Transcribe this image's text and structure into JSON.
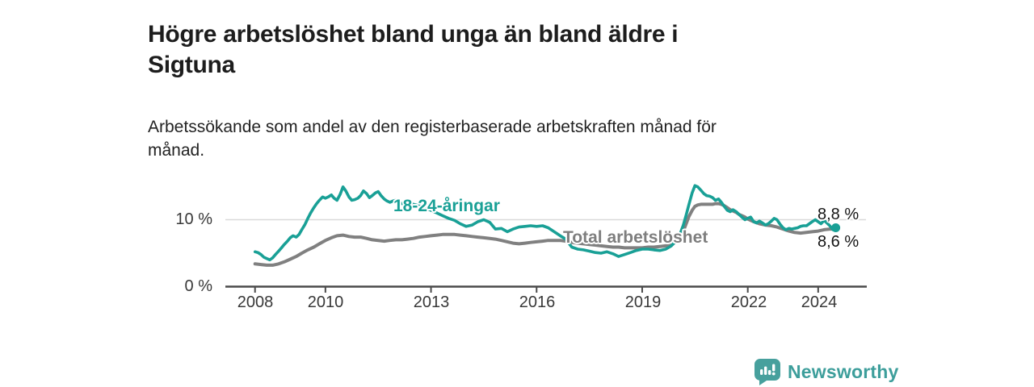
{
  "header": {
    "title_lines": [
      "Högre arbetslöshet bland unga än bland äldre i",
      "Sigtuna"
    ],
    "subtitle_lines": [
      "Arbetssökande som andel av den registerbaserade arbetskraften månad för",
      "månad."
    ]
  },
  "branding": {
    "logo_text": "Newsworthy",
    "logo_icon": "bar-chart-speech-bubble-icon",
    "text_color": "#3d9e9b",
    "icon_color": "#47a09d"
  },
  "chart_data": {
    "type": "line",
    "title": "Högre arbetslöshet bland unga än bland äldre i Sigtuna",
    "subtitle": "Arbetssökande som andel av den registerbaserade arbetskraften månad för månad.",
    "xlabel": "",
    "ylabel": "",
    "grid": "single horizontal gridline at 10 %",
    "legend_position": "inline labels on lines",
    "x_axis": {
      "tick_years": [
        2008,
        2010,
        2013,
        2016,
        2019,
        2022,
        2024
      ],
      "tick_labels": [
        "2008",
        "2010",
        "2013",
        "2016",
        "2019",
        "2022",
        "2024"
      ],
      "range": [
        2007.7,
        2025.4
      ]
    },
    "y_axis": {
      "tick_labels": {
        "zero": "0 %",
        "ten": "10 %"
      },
      "tick_values": [
        0,
        10
      ],
      "gridlines": [
        10
      ],
      "range": [
        0,
        17
      ]
    },
    "end_labels": {
      "young": "8,8 %",
      "total": "8,6 %"
    },
    "colors": {
      "young": "#19a096",
      "total": "#808080",
      "gridline": "#d9d9d9",
      "axis": "#4a4a4a",
      "value_text": "#141414"
    },
    "series": [
      {
        "name": "young",
        "label": "18-24-åringar",
        "color": "#19a096",
        "width": 3.6,
        "end_value_label": "8,8 %",
        "points": [
          [
            2008.0,
            5.2
          ],
          [
            2008.08,
            5.1
          ],
          [
            2008.17,
            4.8
          ],
          [
            2008.25,
            4.4
          ],
          [
            2008.33,
            4.2
          ],
          [
            2008.42,
            4.0
          ],
          [
            2008.5,
            4.3
          ],
          [
            2008.58,
            4.8
          ],
          [
            2008.67,
            5.3
          ],
          [
            2008.75,
            5.8
          ],
          [
            2008.83,
            6.3
          ],
          [
            2008.92,
            6.8
          ],
          [
            2009.0,
            7.3
          ],
          [
            2009.08,
            7.6
          ],
          [
            2009.17,
            7.4
          ],
          [
            2009.25,
            7.8
          ],
          [
            2009.33,
            8.5
          ],
          [
            2009.42,
            9.3
          ],
          [
            2009.5,
            10.2
          ],
          [
            2009.58,
            11.0
          ],
          [
            2009.67,
            11.8
          ],
          [
            2009.75,
            12.4
          ],
          [
            2009.83,
            12.9
          ],
          [
            2009.92,
            13.4
          ],
          [
            2010.0,
            13.2
          ],
          [
            2010.08,
            13.4
          ],
          [
            2010.17,
            13.7
          ],
          [
            2010.25,
            13.2
          ],
          [
            2010.33,
            12.9
          ],
          [
            2010.42,
            13.8
          ],
          [
            2010.5,
            14.9
          ],
          [
            2010.58,
            14.3
          ],
          [
            2010.67,
            13.4
          ],
          [
            2010.75,
            12.9
          ],
          [
            2010.83,
            13.0
          ],
          [
            2010.92,
            13.2
          ],
          [
            2011.0,
            13.6
          ],
          [
            2011.08,
            14.3
          ],
          [
            2011.17,
            13.9
          ],
          [
            2011.25,
            13.3
          ],
          [
            2011.33,
            13.6
          ],
          [
            2011.42,
            14.0
          ],
          [
            2011.5,
            14.2
          ],
          [
            2011.58,
            13.6
          ],
          [
            2011.67,
            13.1
          ],
          [
            2011.75,
            12.8
          ],
          [
            2011.83,
            12.6
          ],
          [
            2011.92,
            12.8
          ],
          [
            2012.0,
            12.9
          ],
          [
            2012.17,
            12.4
          ],
          [
            2012.33,
            12.6
          ],
          [
            2012.5,
            12.3
          ],
          [
            2012.67,
            12.1
          ],
          [
            2012.83,
            11.8
          ],
          [
            2013.0,
            11.4
          ],
          [
            2013.17,
            11.0
          ],
          [
            2013.33,
            10.6
          ],
          [
            2013.5,
            10.2
          ],
          [
            2013.67,
            9.9
          ],
          [
            2013.83,
            9.4
          ],
          [
            2014.0,
            9.0
          ],
          [
            2014.17,
            9.2
          ],
          [
            2014.33,
            9.7
          ],
          [
            2014.5,
            10.0
          ],
          [
            2014.67,
            9.6
          ],
          [
            2014.83,
            8.6
          ],
          [
            2015.0,
            8.7
          ],
          [
            2015.17,
            8.2
          ],
          [
            2015.33,
            8.6
          ],
          [
            2015.5,
            8.9
          ],
          [
            2015.67,
            9.0
          ],
          [
            2015.83,
            9.1
          ],
          [
            2016.0,
            9.0
          ],
          [
            2016.17,
            9.1
          ],
          [
            2016.33,
            8.8
          ],
          [
            2016.5,
            8.2
          ],
          [
            2016.67,
            7.6
          ],
          [
            2016.83,
            7.1
          ],
          [
            2017.0,
            5.9
          ],
          [
            2017.17,
            5.6
          ],
          [
            2017.33,
            5.5
          ],
          [
            2017.5,
            5.3
          ],
          [
            2017.67,
            5.1
          ],
          [
            2017.83,
            5.0
          ],
          [
            2018.0,
            5.2
          ],
          [
            2018.17,
            4.9
          ],
          [
            2018.33,
            4.5
          ],
          [
            2018.5,
            4.8
          ],
          [
            2018.67,
            5.1
          ],
          [
            2018.83,
            5.4
          ],
          [
            2019.0,
            5.6
          ],
          [
            2019.17,
            5.6
          ],
          [
            2019.33,
            5.5
          ],
          [
            2019.5,
            5.4
          ],
          [
            2019.67,
            5.6
          ],
          [
            2019.83,
            6.1
          ],
          [
            2020.0,
            7.0
          ],
          [
            2020.08,
            7.9
          ],
          [
            2020.17,
            9.2
          ],
          [
            2020.25,
            10.7
          ],
          [
            2020.33,
            12.3
          ],
          [
            2020.42,
            14.0
          ],
          [
            2020.5,
            15.1
          ],
          [
            2020.58,
            14.9
          ],
          [
            2020.67,
            14.4
          ],
          [
            2020.75,
            13.9
          ],
          [
            2020.83,
            13.6
          ],
          [
            2020.92,
            13.5
          ],
          [
            2021.0,
            13.3
          ],
          [
            2021.08,
            12.9
          ],
          [
            2021.17,
            13.1
          ],
          [
            2021.25,
            12.6
          ],
          [
            2021.33,
            12.0
          ],
          [
            2021.42,
            11.4
          ],
          [
            2021.5,
            11.2
          ],
          [
            2021.58,
            11.5
          ],
          [
            2021.67,
            11.2
          ],
          [
            2021.75,
            10.8
          ],
          [
            2021.83,
            10.4
          ],
          [
            2021.92,
            10.0
          ],
          [
            2022.0,
            10.2
          ],
          [
            2022.08,
            10.4
          ],
          [
            2022.17,
            9.7
          ],
          [
            2022.25,
            9.5
          ],
          [
            2022.33,
            9.8
          ],
          [
            2022.42,
            9.5
          ],
          [
            2022.5,
            9.2
          ],
          [
            2022.58,
            9.4
          ],
          [
            2022.67,
            9.8
          ],
          [
            2022.75,
            10.2
          ],
          [
            2022.83,
            10.0
          ],
          [
            2022.92,
            9.3
          ],
          [
            2023.0,
            8.8
          ],
          [
            2023.08,
            8.5
          ],
          [
            2023.17,
            8.7
          ],
          [
            2023.25,
            8.6
          ],
          [
            2023.33,
            8.7
          ],
          [
            2023.42,
            8.8
          ],
          [
            2023.5,
            9.0
          ],
          [
            2023.58,
            9.1
          ],
          [
            2023.67,
            9.1
          ],
          [
            2023.75,
            9.4
          ],
          [
            2023.83,
            9.7
          ],
          [
            2023.92,
            10.0
          ],
          [
            2024.0,
            9.7
          ],
          [
            2024.08,
            9.4
          ],
          [
            2024.17,
            9.9
          ],
          [
            2024.25,
            9.5
          ],
          [
            2024.33,
            9.1
          ],
          [
            2024.42,
            8.5
          ],
          [
            2024.5,
            8.8
          ]
        ]
      },
      {
        "name": "total",
        "label": "Total arbetslöshet",
        "color": "#808080",
        "width": 4,
        "end_value_label": "8,6 %",
        "points": [
          [
            2008.0,
            3.4
          ],
          [
            2008.17,
            3.3
          ],
          [
            2008.33,
            3.2
          ],
          [
            2008.5,
            3.2
          ],
          [
            2008.67,
            3.4
          ],
          [
            2008.83,
            3.7
          ],
          [
            2009.0,
            4.1
          ],
          [
            2009.17,
            4.5
          ],
          [
            2009.33,
            5.0
          ],
          [
            2009.5,
            5.5
          ],
          [
            2009.67,
            5.9
          ],
          [
            2009.83,
            6.4
          ],
          [
            2010.0,
            6.9
          ],
          [
            2010.17,
            7.3
          ],
          [
            2010.33,
            7.6
          ],
          [
            2010.5,
            7.7
          ],
          [
            2010.67,
            7.5
          ],
          [
            2010.83,
            7.4
          ],
          [
            2011.0,
            7.4
          ],
          [
            2011.17,
            7.2
          ],
          [
            2011.33,
            7.0
          ],
          [
            2011.5,
            6.9
          ],
          [
            2011.67,
            6.8
          ],
          [
            2011.83,
            6.9
          ],
          [
            2012.0,
            7.0
          ],
          [
            2012.17,
            7.0
          ],
          [
            2012.33,
            7.1
          ],
          [
            2012.5,
            7.2
          ],
          [
            2012.67,
            7.4
          ],
          [
            2012.83,
            7.5
          ],
          [
            2013.0,
            7.6
          ],
          [
            2013.17,
            7.7
          ],
          [
            2013.33,
            7.8
          ],
          [
            2013.5,
            7.8
          ],
          [
            2013.67,
            7.8
          ],
          [
            2013.83,
            7.7
          ],
          [
            2014.0,
            7.6
          ],
          [
            2014.17,
            7.5
          ],
          [
            2014.33,
            7.4
          ],
          [
            2014.5,
            7.3
          ],
          [
            2014.67,
            7.2
          ],
          [
            2014.83,
            7.1
          ],
          [
            2015.0,
            6.9
          ],
          [
            2015.17,
            6.7
          ],
          [
            2015.33,
            6.5
          ],
          [
            2015.5,
            6.4
          ],
          [
            2015.67,
            6.5
          ],
          [
            2015.83,
            6.6
          ],
          [
            2016.0,
            6.7
          ],
          [
            2016.17,
            6.8
          ],
          [
            2016.33,
            6.9
          ],
          [
            2016.5,
            6.9
          ],
          [
            2016.67,
            6.9
          ],
          [
            2016.83,
            6.8
          ],
          [
            2017.0,
            6.6
          ],
          [
            2017.17,
            6.5
          ],
          [
            2017.33,
            6.4
          ],
          [
            2017.5,
            6.3
          ],
          [
            2017.67,
            6.2
          ],
          [
            2017.83,
            6.1
          ],
          [
            2018.0,
            6.0
          ],
          [
            2018.17,
            5.9
          ],
          [
            2018.33,
            5.9
          ],
          [
            2018.5,
            5.8
          ],
          [
            2018.67,
            5.8
          ],
          [
            2018.83,
            5.8
          ],
          [
            2019.0,
            5.8
          ],
          [
            2019.17,
            5.9
          ],
          [
            2019.33,
            5.9
          ],
          [
            2019.5,
            6.0
          ],
          [
            2019.67,
            6.1
          ],
          [
            2019.83,
            6.3
          ],
          [
            2020.0,
            6.8
          ],
          [
            2020.08,
            7.4
          ],
          [
            2020.17,
            8.3
          ],
          [
            2020.25,
            9.4
          ],
          [
            2020.33,
            10.5
          ],
          [
            2020.42,
            11.4
          ],
          [
            2020.5,
            12.0
          ],
          [
            2020.58,
            12.2
          ],
          [
            2020.67,
            12.3
          ],
          [
            2020.83,
            12.3
          ],
          [
            2021.0,
            12.3
          ],
          [
            2021.08,
            12.4
          ],
          [
            2021.17,
            12.4
          ],
          [
            2021.25,
            12.3
          ],
          [
            2021.33,
            12.1
          ],
          [
            2021.42,
            11.8
          ],
          [
            2021.5,
            11.5
          ],
          [
            2021.58,
            11.3
          ],
          [
            2021.67,
            11.1
          ],
          [
            2021.75,
            10.8
          ],
          [
            2021.83,
            10.6
          ],
          [
            2021.92,
            10.4
          ],
          [
            2022.0,
            10.1
          ],
          [
            2022.17,
            9.7
          ],
          [
            2022.33,
            9.4
          ],
          [
            2022.5,
            9.2
          ],
          [
            2022.67,
            9.1
          ],
          [
            2022.83,
            8.9
          ],
          [
            2023.0,
            8.6
          ],
          [
            2023.17,
            8.3
          ],
          [
            2023.33,
            8.1
          ],
          [
            2023.5,
            8.0
          ],
          [
            2023.67,
            8.1
          ],
          [
            2023.83,
            8.2
          ],
          [
            2024.0,
            8.3
          ],
          [
            2024.17,
            8.5
          ],
          [
            2024.33,
            8.6
          ],
          [
            2024.5,
            8.6
          ]
        ]
      }
    ]
  }
}
